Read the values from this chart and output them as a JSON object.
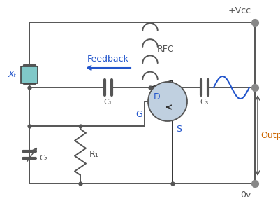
{
  "bg_color": "#ffffff",
  "line_color": "#555555",
  "blue_color": "#2255cc",
  "label_color_orange": "#cc6600",
  "transistor_fill": "#c0d0e0",
  "crystal_fill": "#80c8c8",
  "rfc_label": "RFC",
  "c1_label": "C₁",
  "c2_label": "C₂",
  "c3_label": "C₃",
  "r1_label": "R₁",
  "xt_label": "Xₜ",
  "feedback_label": "Feedback",
  "output_label": "Output",
  "vcc_label": "+Vcc",
  "ov_label": "0v",
  "d_label": "D",
  "g_label": "G",
  "s_label": "S"
}
